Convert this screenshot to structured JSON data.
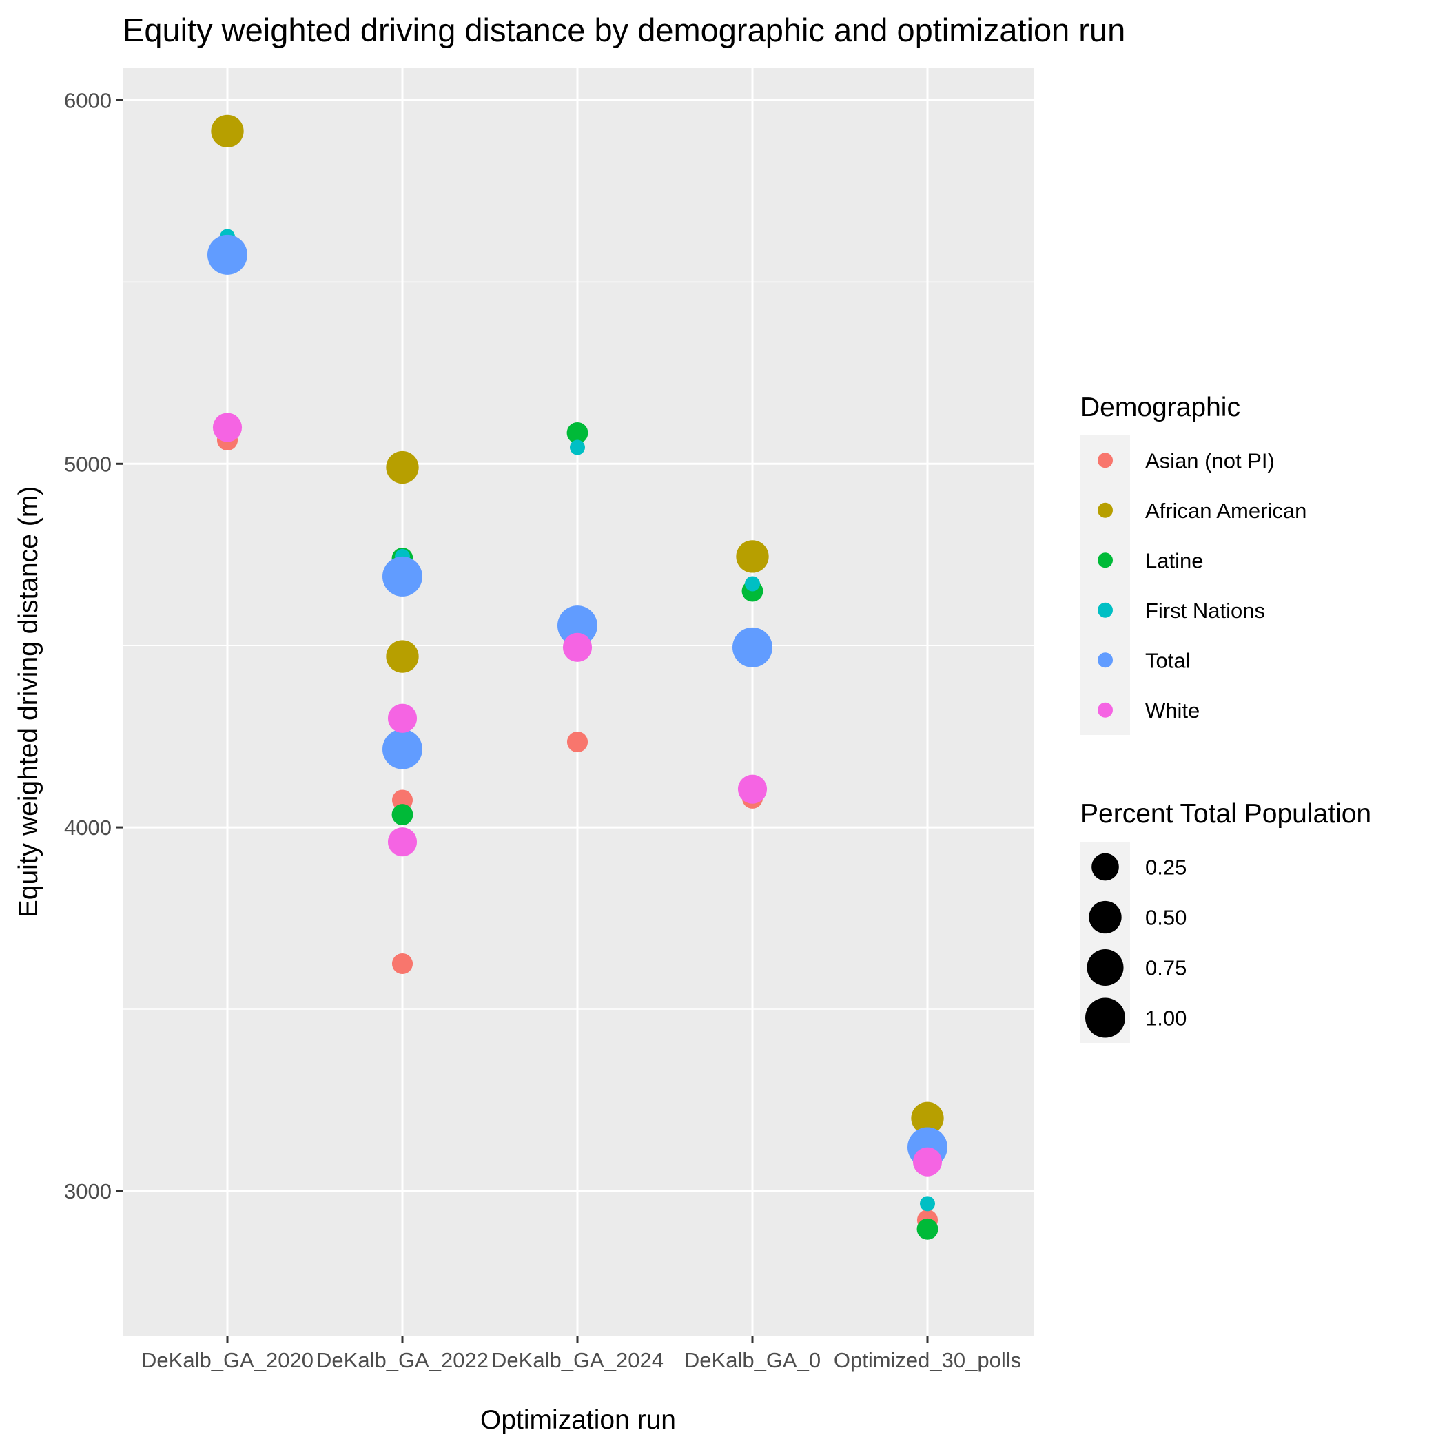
{
  "chart_data": {
    "type": "scatter",
    "title": "Equity weighted driving distance by demographic and optimization run",
    "xlabel": "Optimization run",
    "ylabel": "Equity weighted driving distance (m)",
    "categories": [
      "DeKalb_GA_2020",
      "DeKalb_GA_2022",
      "DeKalb_GA_2024",
      "DeKalb_GA_0",
      "Optimized_30_polls"
    ],
    "y_ticks": [
      3000,
      4000,
      5000,
      6000
    ],
    "ylim": [
      2600,
      6090
    ],
    "grid": true,
    "legend_position": "right",
    "color_legend": {
      "title": "Demographic",
      "entries": [
        {
          "label": "Asian (not PI)",
          "color": "#F8766D"
        },
        {
          "label": "African American",
          "color": "#B79F00"
        },
        {
          "label": "Latine",
          "color": "#00BA38"
        },
        {
          "label": "First Nations",
          "color": "#00BFC4"
        },
        {
          "label": "Total",
          "color": "#619CFF"
        },
        {
          "label": "White",
          "color": "#F564E3"
        }
      ]
    },
    "size_legend": {
      "title": "Percent Total Population",
      "values": [
        0.25,
        0.5,
        0.75,
        1.0
      ],
      "labels": [
        "0.25",
        "0.50",
        "0.75",
        "1.00"
      ]
    },
    "series": [
      {
        "name": "Asian (not PI)",
        "size": 0.06,
        "points": [
          {
            "x": "DeKalb_GA_2020",
            "y": 5065
          },
          {
            "x": "DeKalb_GA_2022",
            "y": 4075
          },
          {
            "x": "DeKalb_GA_2022",
            "y": 3625
          },
          {
            "x": "DeKalb_GA_2024",
            "y": 4235
          },
          {
            "x": "DeKalb_GA_0",
            "y": 4080
          },
          {
            "x": "Optimized_30_polls",
            "y": 2920
          }
        ]
      },
      {
        "name": "African American",
        "size": 0.5,
        "points": [
          {
            "x": "DeKalb_GA_2020",
            "y": 5915
          },
          {
            "x": "DeKalb_GA_2022",
            "y": 4990
          },
          {
            "x": "DeKalb_GA_2022",
            "y": 4470
          },
          {
            "x": "DeKalb_GA_0",
            "y": 4745
          },
          {
            "x": "Optimized_30_polls",
            "y": 3200
          }
        ]
      },
      {
        "name": "Latine",
        "size": 0.07,
        "points": [
          {
            "x": "DeKalb_GA_2022",
            "y": 4740
          },
          {
            "x": "DeKalb_GA_2022",
            "y": 4035
          },
          {
            "x": "DeKalb_GA_2024",
            "y": 5085
          },
          {
            "x": "DeKalb_GA_0",
            "y": 4650
          },
          {
            "x": "Optimized_30_polls",
            "y": 2895
          }
        ]
      },
      {
        "name": "First Nations",
        "size": 0.01,
        "points": [
          {
            "x": "DeKalb_GA_2020",
            "y": 5625
          },
          {
            "x": "DeKalb_GA_2022",
            "y": 4745
          },
          {
            "x": "DeKalb_GA_2024",
            "y": 5045
          },
          {
            "x": "DeKalb_GA_0",
            "y": 4670
          },
          {
            "x": "Optimized_30_polls",
            "y": 2965
          }
        ]
      },
      {
        "name": "Total",
        "size": 1.0,
        "points": [
          {
            "x": "DeKalb_GA_2020",
            "y": 5575
          },
          {
            "x": "DeKalb_GA_2022",
            "y": 4690
          },
          {
            "x": "DeKalb_GA_2022",
            "y": 4215
          },
          {
            "x": "DeKalb_GA_2024",
            "y": 4555
          },
          {
            "x": "DeKalb_GA_0",
            "y": 4495
          },
          {
            "x": "Optimized_30_polls",
            "y": 3120
          }
        ]
      },
      {
        "name": "White",
        "size": 0.32,
        "points": [
          {
            "x": "DeKalb_GA_2020",
            "y": 5100
          },
          {
            "x": "DeKalb_GA_2022",
            "y": 4300
          },
          {
            "x": "DeKalb_GA_2022",
            "y": 3960
          },
          {
            "x": "DeKalb_GA_2024",
            "y": 4495
          },
          {
            "x": "DeKalb_GA_0",
            "y": 4105
          },
          {
            "x": "Optimized_30_polls",
            "y": 3080
          }
        ]
      }
    ]
  }
}
